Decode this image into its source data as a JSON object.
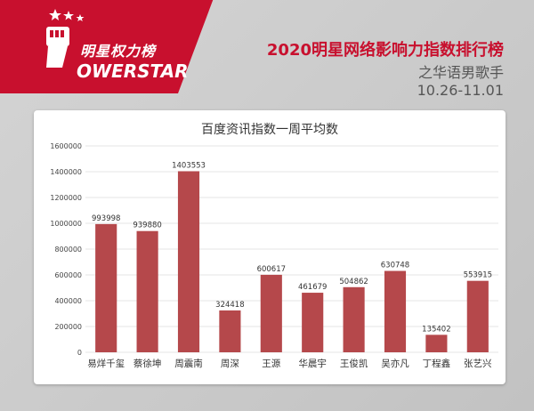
{
  "header": {
    "logo_cn": "明星权力榜",
    "logo_en": "OWERSTAR",
    "title": "2020明星网络影响力指数排行榜",
    "subtitle": "之华语男歌手",
    "date_range": "10.26-11.01"
  },
  "colors": {
    "brand_red": "#c8102e",
    "bar": "#b5484b",
    "grid": "#e6e6e6"
  },
  "chart_data": {
    "type": "bar",
    "title": "百度资讯指数一周平均数",
    "categories": [
      "易烊千玺",
      "蔡徐坤",
      "周震南",
      "周深",
      "王源",
      "华晨宇",
      "王俊凯",
      "吴亦凡",
      "丁程鑫",
      "张艺兴"
    ],
    "values": [
      993998,
      939880,
      1403553,
      324418,
      600617,
      461679,
      504862,
      630748,
      135402,
      553915
    ],
    "ylim": [
      0,
      1600000
    ],
    "yticks": [
      0,
      200000,
      400000,
      600000,
      800000,
      1000000,
      1200000,
      1400000,
      1600000
    ],
    "grid": true,
    "legend": "none"
  }
}
